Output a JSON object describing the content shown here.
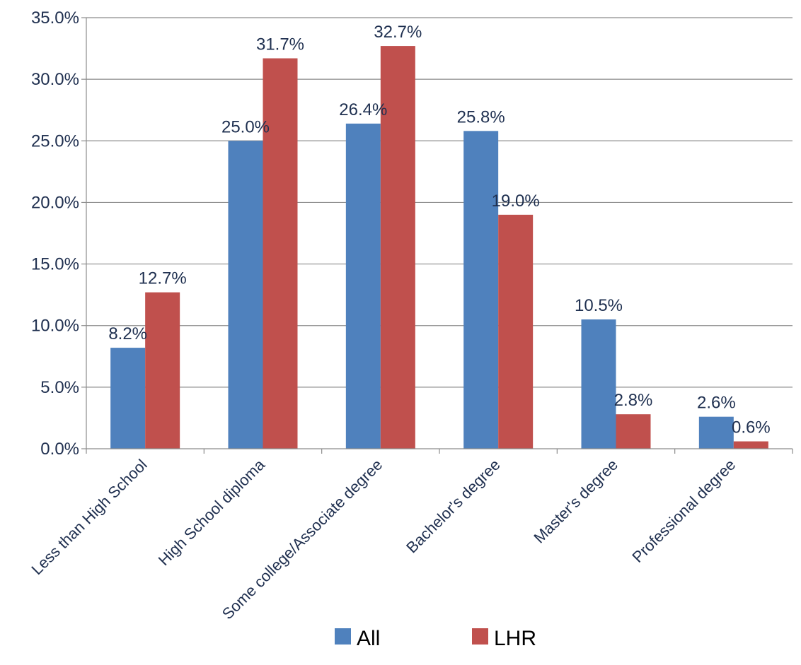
{
  "chart_data": {
    "type": "bar",
    "categories": [
      "Less than High School",
      "High School diploma",
      "Some college/Associate degree",
      "Bachelor's degree",
      "Master's degree",
      "Professional degree"
    ],
    "series": [
      {
        "name": "All",
        "color": "#4f81bd",
        "values": [
          8.2,
          25.0,
          26.4,
          25.8,
          10.5,
          2.6
        ],
        "labels": [
          "8.2%",
          "25.0%",
          "26.4%",
          "25.8%",
          "10.5%",
          "2.6%"
        ]
      },
      {
        "name": "LHR",
        "color": "#c0504d",
        "values": [
          12.7,
          31.7,
          32.7,
          19.0,
          2.8,
          0.6
        ],
        "labels": [
          "12.7%",
          "31.7%",
          "32.7%",
          "19.0%",
          "2.8%",
          "0.6%"
        ]
      }
    ],
    "yticks": [
      {
        "value": 0,
        "label": "0.0%"
      },
      {
        "value": 5,
        "label": "5.0%"
      },
      {
        "value": 10,
        "label": "10.0%"
      },
      {
        "value": 15,
        "label": "15.0%"
      },
      {
        "value": 20,
        "label": "20.0%"
      },
      {
        "value": 25,
        "label": "25.0%"
      },
      {
        "value": 30,
        "label": "30.0%"
      },
      {
        "value": 35,
        "label": "35.0%"
      }
    ],
    "ylim": [
      0,
      35
    ],
    "grid": true,
    "legend_position": "bottom",
    "gridline_color": "#8c8c8c",
    "axis_color": "#8c8c8c"
  }
}
